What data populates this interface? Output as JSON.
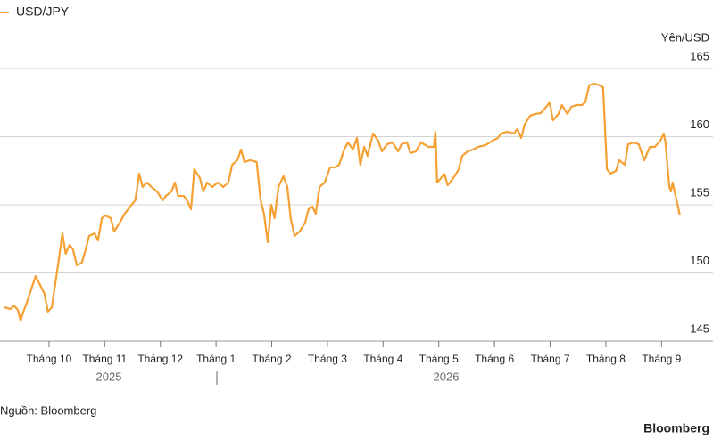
{
  "chart_data": {
    "type": "line",
    "title": "USD/JPY",
    "y_axis_label": "Yên/USD",
    "source": "Nguồn: Bloomberg",
    "brand": "Bloomberg",
    "year_labels": [
      "2025",
      "2026"
    ],
    "xlim": [
      -0.88,
      11.4
    ],
    "xticks": [
      {
        "value": 0,
        "label": "Tháng 10"
      },
      {
        "value": 1,
        "label": "Tháng 11"
      },
      {
        "value": 2,
        "label": "Tháng 12"
      },
      {
        "value": 3,
        "label": "Tháng 1"
      },
      {
        "value": 4,
        "label": "Tháng 2"
      },
      {
        "value": 5,
        "label": "Tháng 3"
      },
      {
        "value": 6,
        "label": "Tháng 4"
      },
      {
        "value": 7,
        "label": "Tháng 5"
      },
      {
        "value": 8,
        "label": "Tháng 6"
      },
      {
        "value": 9,
        "label": "Tháng 7"
      },
      {
        "value": 10,
        "label": "Tháng 8"
      },
      {
        "value": 11,
        "label": "Tháng 9"
      }
    ],
    "ylim": [
      145,
      165
    ],
    "yticks": [
      145,
      150,
      155,
      160,
      165
    ],
    "grid": true,
    "x": [
      -0.8,
      -0.69,
      -0.63,
      -0.56,
      -0.51,
      -0.46,
      -0.4,
      -0.32,
      -0.24,
      -0.16,
      -0.08,
      -0.02,
      0.05,
      0.11,
      0.18,
      0.24,
      0.3,
      0.37,
      0.43,
      0.5,
      0.59,
      0.66,
      0.72,
      0.82,
      0.88,
      0.95,
      1.01,
      1.11,
      1.17,
      1.27,
      1.36,
      1.46,
      1.55,
      1.62,
      1.68,
      1.76,
      1.84,
      1.94,
      2.04,
      2.1,
      2.2,
      2.26,
      2.32,
      2.42,
      2.48,
      2.55,
      2.61,
      2.71,
      2.77,
      2.84,
      2.93,
      3.03,
      3.13,
      3.22,
      3.29,
      3.38,
      3.45,
      3.51,
      3.61,
      3.73,
      3.8,
      3.86,
      3.93,
      3.99,
      4.05,
      4.12,
      4.21,
      4.28,
      4.34,
      4.41,
      4.5,
      4.6,
      4.66,
      4.73,
      4.79,
      4.86,
      4.95,
      5.05,
      5.14,
      5.21,
      5.3,
      5.37,
      5.46,
      5.53,
      5.59,
      5.66,
      5.72,
      5.82,
      5.91,
      5.98,
      6.07,
      6.17,
      6.27,
      6.33,
      6.43,
      6.49,
      6.59,
      6.68,
      6.81,
      6.91,
      6.94,
      6.97,
      7.04,
      7.1,
      7.16,
      7.26,
      7.36,
      7.42,
      7.52,
      7.61,
      7.71,
      7.84,
      7.97,
      8.06,
      8.12,
      8.22,
      8.35,
      8.41,
      8.48,
      8.54,
      8.64,
      8.73,
      8.83,
      8.93,
      8.99,
      9.05,
      9.15,
      9.21,
      9.31,
      9.38,
      9.47,
      9.57,
      9.63,
      9.7,
      9.79,
      9.89,
      9.95,
      10.02,
      10.08,
      10.18,
      10.24,
      10.34,
      10.4,
      10.5,
      10.59,
      10.69,
      10.79,
      10.88,
      10.98,
      11.04,
      11.07,
      11.14,
      11.17,
      11.2,
      11.27,
      11.33
    ],
    "series": [
      {
        "name": "USD/JPY",
        "color": "#f5a033",
        "values": [
          147.48,
          147.35,
          147.61,
          147.29,
          146.5,
          147.16,
          147.81,
          148.79,
          149.77,
          149.12,
          148.46,
          147.16,
          147.48,
          149.12,
          151.08,
          152.91,
          151.41,
          152.06,
          151.73,
          150.56,
          150.75,
          151.73,
          152.71,
          152.91,
          152.39,
          154.02,
          154.22,
          154.02,
          153.04,
          153.69,
          154.35,
          154.87,
          155.33,
          157.29,
          156.31,
          156.63,
          156.31,
          155.98,
          155.33,
          155.65,
          155.98,
          156.63,
          155.65,
          155.65,
          155.33,
          154.67,
          157.61,
          156.96,
          155.98,
          156.63,
          156.31,
          156.63,
          156.31,
          156.63,
          157.94,
          158.27,
          159.05,
          158.14,
          158.27,
          158.14,
          155.33,
          154.35,
          152.25,
          155.0,
          154.02,
          156.31,
          157.09,
          156.31,
          154.02,
          152.71,
          153.04,
          153.69,
          154.67,
          154.87,
          154.35,
          156.31,
          156.63,
          157.75,
          157.75,
          157.94,
          159.05,
          159.58,
          159.05,
          159.9,
          157.94,
          159.25,
          158.59,
          160.23,
          159.71,
          158.92,
          159.44,
          159.58,
          158.92,
          159.44,
          159.58,
          158.79,
          158.92,
          159.58,
          159.25,
          159.25,
          160.36,
          156.63,
          156.96,
          157.29,
          156.44,
          156.96,
          157.61,
          158.59,
          158.92,
          159.05,
          159.25,
          159.38,
          159.71,
          159.9,
          160.23,
          160.36,
          160.23,
          160.56,
          159.9,
          160.88,
          161.54,
          161.67,
          161.73,
          162.19,
          162.52,
          161.21,
          161.67,
          162.32,
          161.67,
          162.19,
          162.32,
          162.32,
          162.52,
          163.76,
          163.89,
          163.76,
          163.63,
          157.61,
          157.29,
          157.48,
          158.27,
          157.94,
          159.44,
          159.58,
          159.44,
          158.27,
          159.25,
          159.25,
          159.71,
          160.23,
          159.58,
          156.31,
          155.98,
          156.63,
          155.33,
          154.22
        ]
      }
    ]
  }
}
